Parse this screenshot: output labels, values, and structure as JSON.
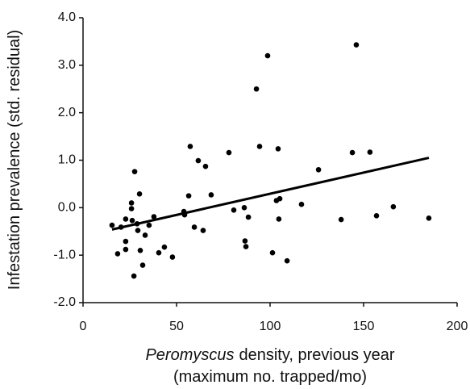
{
  "chart_data": {
    "type": "scatter",
    "ylabel": "Infestation prevalence (std. residual)",
    "xlabel_italic": "Peromyscus",
    "xlabel_rest": "density, previous year",
    "xlabel_line2": "(maximum no. trapped/mo)",
    "xlim": [
      0,
      200
    ],
    "ylim": [
      -2,
      4
    ],
    "xticks": [
      0,
      50,
      100,
      150,
      200
    ],
    "yticks": [
      {
        "value": -2,
        "label": "-2.0"
      },
      {
        "value": -1,
        "label": "-1.0"
      },
      {
        "value": 0,
        "label": "0.0"
      },
      {
        "value": 1,
        "label": "1.0"
      },
      {
        "value": 2,
        "label": "2.0"
      },
      {
        "value": 3,
        "label": "3.0"
      },
      {
        "value": 4,
        "label": "4.0"
      }
    ],
    "color": "#000000",
    "x": [
      15.5,
      18.5,
      20.3,
      22.8,
      22.8,
      22.8,
      25.9,
      25.9,
      26.3,
      27.2,
      27.6,
      28.9,
      29.3,
      30.2,
      30.6,
      31.9,
      33.2,
      35.3,
      37.9,
      40.5,
      43.5,
      47.8,
      53.9,
      54.3,
      56.5,
      57.3,
      59.5,
      61.6,
      64.2,
      65.5,
      68.5,
      78.0,
      80.6,
      86.2,
      86.6,
      87.1,
      88.4,
      92.7,
      94.4,
      98.7,
      101.3,
      103.4,
      104.3,
      104.7,
      105.2,
      109.1,
      116.8,
      125.9,
      138.0,
      144.0,
      146.1,
      153.4,
      156.9,
      165.9,
      184.9
    ],
    "y": [
      -0.37,
      -0.97,
      -0.41,
      -0.24,
      -0.71,
      -0.88,
      0.1,
      -0.02,
      -0.27,
      -1.44,
      0.76,
      -0.34,
      -0.48,
      0.29,
      -0.9,
      -1.21,
      -0.58,
      -0.37,
      -0.19,
      -0.95,
      -0.83,
      -1.04,
      -0.08,
      -0.15,
      0.25,
      1.29,
      -0.41,
      0.99,
      -0.48,
      0.87,
      0.27,
      1.16,
      -0.05,
      0.0,
      -0.7,
      -0.82,
      -0.2,
      2.5,
      1.29,
      3.2,
      -0.95,
      0.15,
      1.24,
      -0.24,
      0.19,
      -1.12,
      0.07,
      0.8,
      -0.25,
      1.16,
      3.43,
      1.17,
      -0.17,
      0.02,
      -0.22
    ],
    "trend_line": {
      "x": [
        15.5,
        184.9
      ],
      "y": [
        -0.46,
        1.05
      ]
    }
  }
}
